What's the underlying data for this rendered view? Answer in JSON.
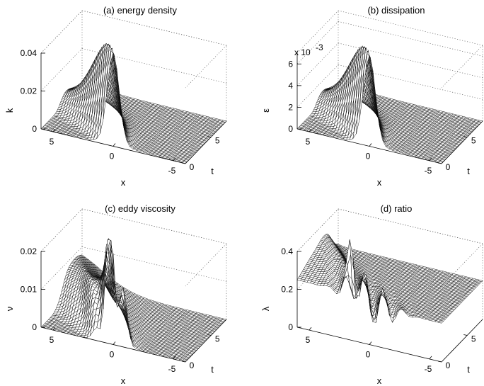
{
  "figure": {
    "type": "surface3d",
    "panel_count": 4
  },
  "chart_data": [
    {
      "type": "surface3d",
      "title": "(a) energy density",
      "xlabel": "x",
      "ylabel": "t",
      "zlabel": "k",
      "xlim": [
        -6,
        6
      ],
      "tlim": [
        0,
        8
      ],
      "zlim": [
        0,
        0.04
      ],
      "xticks": [
        "5",
        "0",
        "-5"
      ],
      "tticks": [
        "0",
        "5"
      ],
      "zticks": [
        "0",
        "0.02",
        "0.04"
      ],
      "zexponent": "",
      "surface_kind": "peak",
      "peak_value": 0.05,
      "peak_location": {
        "x": 0,
        "t": 0.6
      }
    },
    {
      "type": "surface3d",
      "title": "(b) dissipation",
      "xlabel": "x",
      "ylabel": "t",
      "zlabel": "ε",
      "xlim": [
        -6,
        6
      ],
      "tlim": [
        0,
        8
      ],
      "zlim": [
        0,
        0.007
      ],
      "xticks": [
        "5",
        "0",
        "-5"
      ],
      "tticks": [
        "0",
        "5"
      ],
      "zticks": [
        "0",
        "2",
        "4",
        "6"
      ],
      "zexponent": "x 10",
      "zexponent_power": "-3",
      "surface_kind": "peak",
      "peak_value": 0.0085,
      "peak_location": {
        "x": 0,
        "t": 0.6
      }
    },
    {
      "type": "surface3d",
      "title": "(c) eddy viscosity",
      "xlabel": "x",
      "ylabel": "t",
      "zlabel": "ν",
      "xlim": [
        -6,
        6
      ],
      "tlim": [
        0,
        8
      ],
      "zlim": [
        0,
        0.025
      ],
      "xticks": [
        "5",
        "0",
        "-5"
      ],
      "tticks": [
        "0",
        "5"
      ],
      "zticks": [
        "0",
        "0.01",
        "0.02"
      ],
      "zexponent": "",
      "surface_kind": "ripple",
      "peak_value": 0.03,
      "peak_location": {
        "x": 0,
        "t": 0.3
      }
    },
    {
      "type": "surface3d",
      "title": "(d) ratio",
      "xlabel": "x",
      "ylabel": "t",
      "zlabel": "λ",
      "xlim": [
        -6,
        6
      ],
      "tlim": [
        0,
        8
      ],
      "zlim": [
        0,
        0.45
      ],
      "xticks": [
        "5",
        "0",
        "-5"
      ],
      "tticks": [
        "0",
        "5"
      ],
      "zticks": [
        "0",
        "0.2",
        "0.4"
      ],
      "zexponent": "",
      "surface_kind": "ratio",
      "baseline_value": 0.23,
      "asymptote_value": 0.4,
      "peak_value": 0.56
    }
  ]
}
